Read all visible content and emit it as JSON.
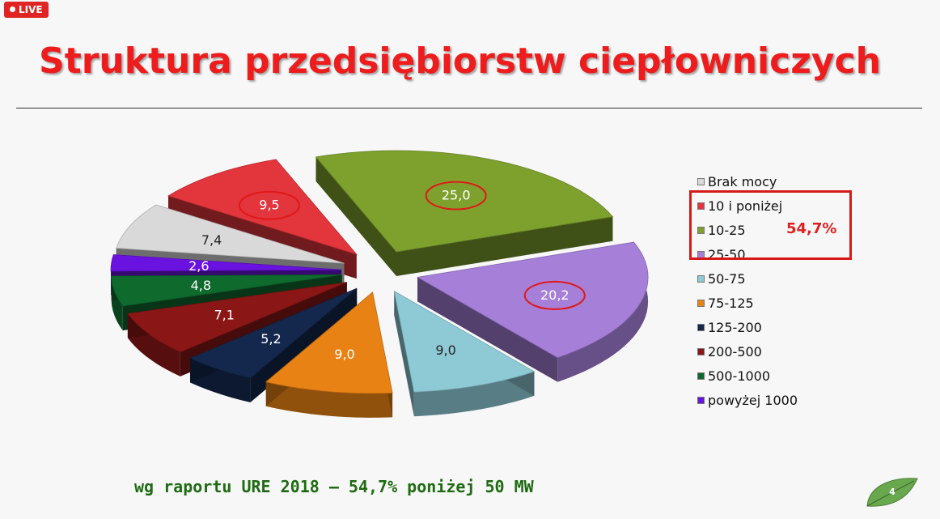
{
  "live_label": "LIVE",
  "title": "Struktura przedsiębiorstw ciepłowniczych",
  "chart_data": {
    "type": "pie",
    "categories": [
      "Brak mocy",
      "10 i poniżej",
      "10-25",
      "25-50",
      "50-75",
      "75-125",
      "125-200",
      "200-500",
      "500-1000",
      "powyżej 1000"
    ],
    "values": [
      7.4,
      9.5,
      25.0,
      20.2,
      9.0,
      9.0,
      5.2,
      7.1,
      4.8,
      2.6
    ],
    "value_labels": [
      "7,4",
      "9,5",
      "25,0",
      "20,2",
      "9,0",
      "9,0",
      "5,2",
      "7,1",
      "4,8",
      "2,6"
    ],
    "colors": [
      "#d9d9d9",
      "#e3353c",
      "#7ea12e",
      "#a67fd9",
      "#8ecad6",
      "#e88214",
      "#14284d",
      "#8b1616",
      "#0f6a2e",
      "#6a12e0"
    ],
    "circled_labels": [
      "10 i poniżej",
      "10-25",
      "25-50"
    ],
    "legend_position": "right"
  },
  "highlight": {
    "label": "54,7%"
  },
  "footer_note": "wg raportu URE 2018 – 54,7% poniżej 50 MW",
  "page_number": "4"
}
